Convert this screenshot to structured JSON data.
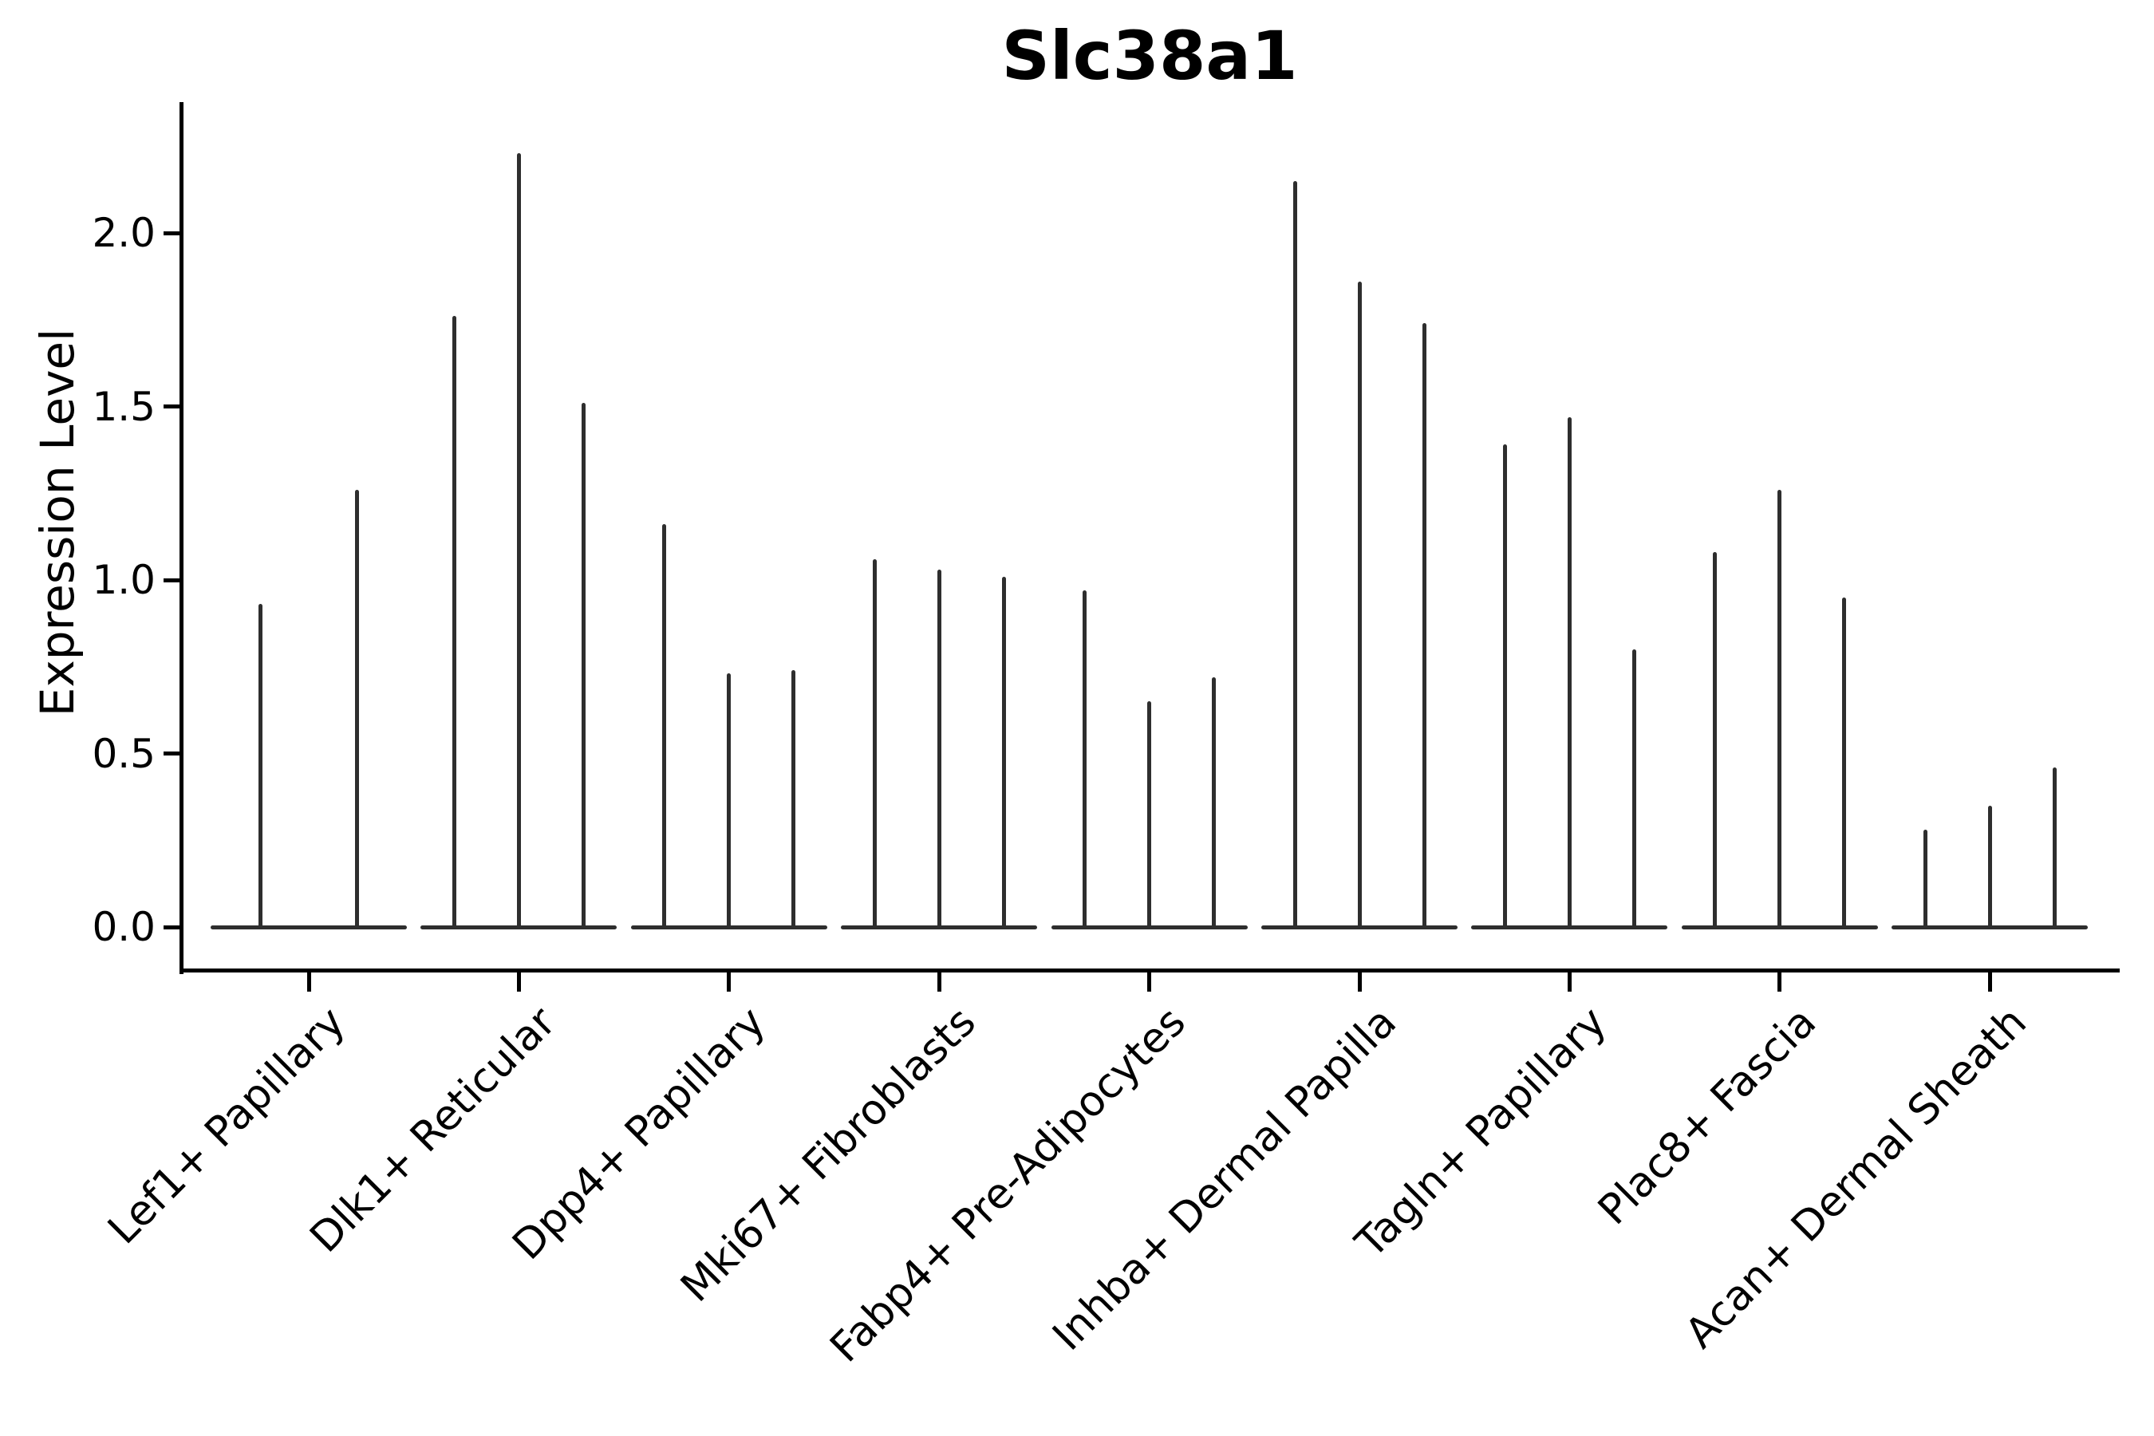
{
  "chart_data": {
    "type": "violin",
    "title": "Slc38a1",
    "ylabel": "Expression Level",
    "xlabel": "",
    "yticks": [
      0.0,
      0.5,
      1.0,
      1.5,
      2.0
    ],
    "ylim": [
      0,
      2.38
    ],
    "grid": false,
    "legend": "none",
    "x_label_rotation_deg": 45,
    "categories": [
      "Lef1+ Papillary",
      "Dlk1+ Reticular",
      "Dpp4+ Papillary",
      "Mki67+ Fibroblasts",
      "Fabp4+ Pre-Adipocytes",
      "Inhba+ Dermal Papilla",
      "Tagln+ Papillary",
      "Plac8+ Fascia",
      "Acan+ Dermal Sheath"
    ],
    "series": [
      {
        "category": "Lef1+ Papillary",
        "peak_values": [
          0.93,
          1.26
        ]
      },
      {
        "category": "Dlk1+ Reticular",
        "peak_values": [
          1.76,
          2.23,
          1.51
        ]
      },
      {
        "category": "Dpp4+ Papillary",
        "peak_values": [
          1.16,
          0.73,
          0.74
        ]
      },
      {
        "category": "Mki67+ Fibroblasts",
        "peak_values": [
          1.06,
          1.03,
          1.01
        ]
      },
      {
        "category": "Fabp4+ Pre-Adipocytes",
        "peak_values": [
          0.97,
          0.65,
          0.72
        ]
      },
      {
        "category": "Inhba+ Dermal Papilla",
        "peak_values": [
          2.15,
          1.86,
          1.74
        ]
      },
      {
        "category": "Tagln+ Papillary",
        "peak_values": [
          1.39,
          1.47,
          0.8
        ]
      },
      {
        "category": "Plac8+ Fascia",
        "peak_values": [
          1.08,
          1.26,
          0.95
        ]
      },
      {
        "category": "Acan+ Dermal Sheath",
        "peak_values": [
          0.28,
          0.35,
          0.46
        ]
      }
    ],
    "colors": {
      "violin": "#2e2e2e",
      "axis": "#000000",
      "text": "#000000",
      "background": "#ffffff"
    }
  }
}
